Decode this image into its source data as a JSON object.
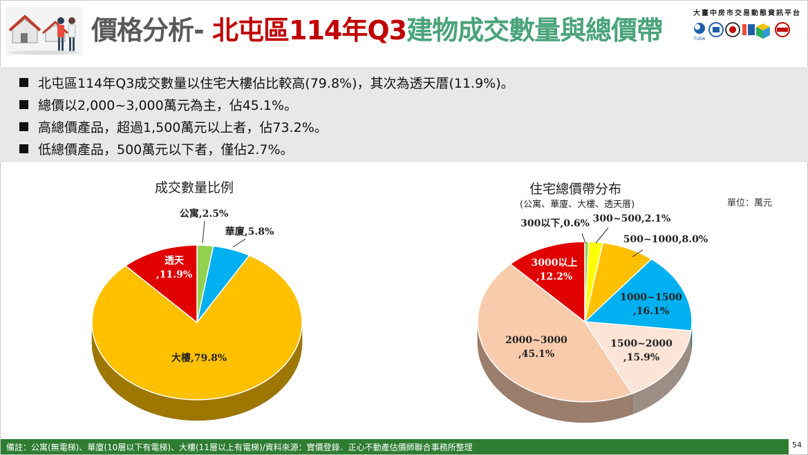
{
  "header": {
    "title_part1": "價格分析- ",
    "title_part2": "北屯區114年Q3",
    "title_part3": "建物成交數量與總價帶",
    "platform_name": "大臺中房市交易動態資訊平台",
    "logo_caption": "TUDA"
  },
  "bullets": [
    "北屯區114年Q3成交數量以住宅大樓佔比較高(79.8%)，其次為透天厝(11.9%)。",
    "總價以2,000~3,000萬元為主，佔45.1%。",
    "高總價產品，超過1,500萬元以上者，佔73.2%。",
    "低總價產品，500萬元以下者，僅佔2.7%。"
  ],
  "chart_data": [
    {
      "type": "pie",
      "title": "成交數量比例",
      "slices": [
        {
          "label": "公寓,2.5%",
          "value": 2.5,
          "color": "#92d050"
        },
        {
          "label": "華廈,5.8%",
          "value": 5.8,
          "color": "#00b0f0"
        },
        {
          "label": "大樓,79.8%",
          "value": 79.8,
          "color": "#ffc000"
        },
        {
          "label": "透天\n,11.9%",
          "value": 11.9,
          "color": "#e00000"
        }
      ]
    },
    {
      "type": "pie",
      "title": "住宅總價帶分布",
      "subtitle": "(公寓、華廈、大樓、透天厝)",
      "unit_label": "單位：萬元",
      "slices": [
        {
          "label": "300以下,0.6%",
          "value": 0.6,
          "color": "#92d050"
        },
        {
          "label": "300~500,2.1%",
          "value": 2.1,
          "color": "#ffff00"
        },
        {
          "label": "500~1000,8.0%",
          "value": 8.0,
          "color": "#ffc000"
        },
        {
          "label": "1000~1500\n,16.1%",
          "value": 16.1,
          "color": "#00b0f0"
        },
        {
          "label": "1500~2000\n,15.9%",
          "value": 15.9,
          "color": "#fce4d6"
        },
        {
          "label": "2000~3000\n,45.1%",
          "value": 45.1,
          "color": "#f8cbad"
        },
        {
          "label": "3000以上\n,12.2%",
          "value": 12.2,
          "color": "#e00000"
        }
      ]
    }
  ],
  "footer": {
    "note": "備註：公寓(無電梯)、華廈(10層以下有電梯)、大樓(11層以上有電梯)/資料來源：實價登錄．正心不動產估價師聯合事務所整理",
    "page_number": "54"
  }
}
